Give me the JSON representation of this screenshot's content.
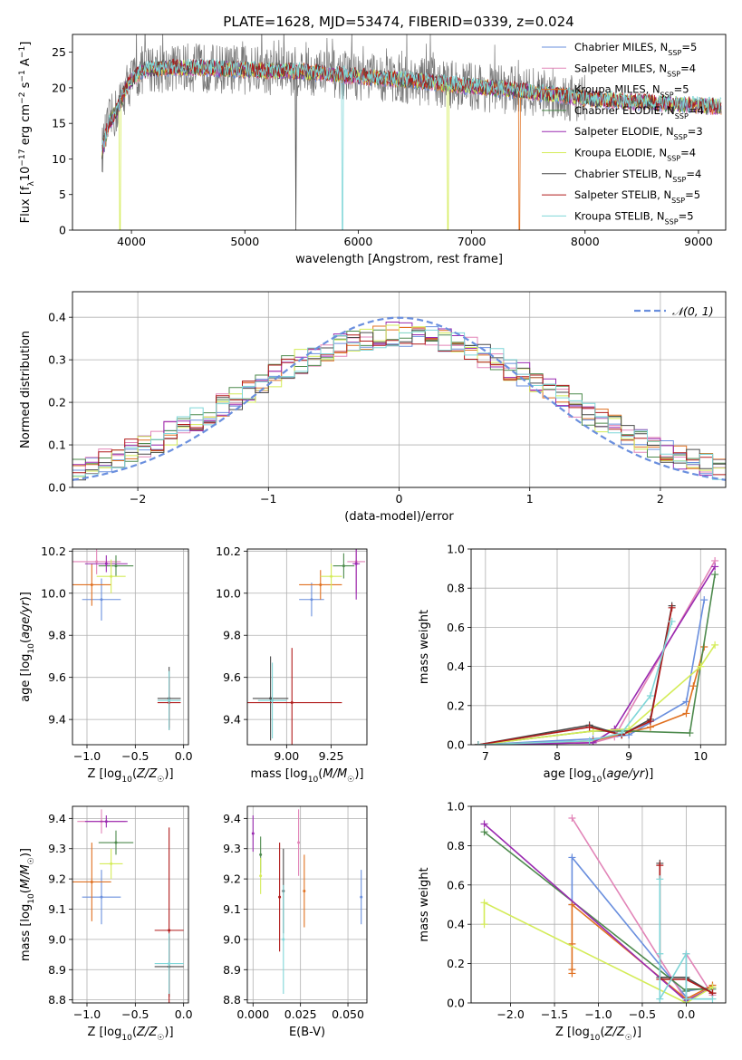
{
  "figure_title": "PLATE=1628, MJD=53474, FIBERID=0339, z=0.024",
  "colors": {
    "Chabrier MILES": "#6a8fde",
    "Salpeter MILES": "#e285b8",
    "Kroupa MILES": "#e07020",
    "Chabrier ELODIE": "#4d8a4d",
    "Salpeter ELODIE": "#9a2ab0",
    "Kroupa ELODIE": "#d4ec58",
    "Chabrier STELIB": "#4a4a4a",
    "Salpeter STELIB": "#b01a1a",
    "Kroupa STELIB": "#7fd6d8"
  },
  "chart_data": [
    {
      "id": "spectrum",
      "type": "line",
      "xlabel": "wavelength [Angstrom, rest frame]",
      "ylabel": "Flux [f_λ10^-17 erg cm^-2 s^-1 A^-1]",
      "xlim": [
        3480,
        9240
      ],
      "ylim": [
        0,
        27.5
      ],
      "xticks": [
        4000,
        5000,
        6000,
        7000,
        8000,
        9000
      ],
      "yticks": [
        0,
        5,
        10,
        15,
        20,
        25
      ],
      "grid": false,
      "legend_position": "top-right",
      "legend": [
        {
          "name": "Chabrier MILES",
          "nssp": "5"
        },
        {
          "name": "Salpeter MILES",
          "nssp": "4"
        },
        {
          "name": "Kroupa MILES",
          "nssp": "5"
        },
        {
          "name": "Chabrier ELODIE",
          "nssp": "4"
        },
        {
          "name": "Salpeter ELODIE",
          "nssp": "3"
        },
        {
          "name": "Kroupa ELODIE",
          "nssp": "4"
        },
        {
          "name": "Chabrier STELIB",
          "nssp": "4"
        },
        {
          "name": "Salpeter STELIB",
          "nssp": "5"
        },
        {
          "name": "Kroupa STELIB",
          "nssp": "5"
        }
      ],
      "continuum": [
        [
          3740,
          11
        ],
        [
          3800,
          15
        ],
        [
          3880,
          17
        ],
        [
          3950,
          20
        ],
        [
          4000,
          21
        ],
        [
          4100,
          22.5
        ],
        [
          4300,
          22.8
        ],
        [
          4600,
          22.8
        ],
        [
          5000,
          22.5
        ],
        [
          5500,
          22.3
        ],
        [
          6000,
          21.6
        ],
        [
          6500,
          21
        ],
        [
          7000,
          20.2
        ],
        [
          7500,
          19.5
        ],
        [
          8000,
          18.5
        ],
        [
          8500,
          18
        ],
        [
          9000,
          17.5
        ],
        [
          9200,
          17.3
        ]
      ],
      "dropouts": [
        {
          "x": 3900,
          "y": 0,
          "series": "Kroupa ELODIE"
        },
        {
          "x": 5860,
          "y": 0,
          "series": "Kroupa STELIB"
        },
        {
          "x": 6790,
          "y": 0,
          "series": "Kroupa ELODIE"
        },
        {
          "x": 7420,
          "y": 0,
          "series": "Kroupa MILES"
        },
        {
          "x": 5450,
          "y": 0,
          "series": "Chabrier STELIB"
        }
      ]
    },
    {
      "id": "residual-hist",
      "type": "line",
      "xlabel": "(data-model)/error",
      "ylabel": "Normed distribution",
      "xlim": [
        -2.5,
        2.5
      ],
      "ylim": [
        0,
        0.46
      ],
      "xticks": [
        -2,
        -1,
        0,
        1,
        2
      ],
      "yticks": [
        0,
        0.1,
        0.2,
        0.3,
        0.4
      ],
      "grid": true,
      "legend_position": "top-right",
      "legend": [
        {
          "name": "𝒩(0, 1)"
        }
      ],
      "bin_width": 0.1,
      "reference": "normal(0,1)"
    },
    {
      "id": "age-vs-Z",
      "type": "scatter",
      "xlabel": "Z [log10(Z/Z☉)]",
      "ylabel": "age [log10(age/yr)]",
      "xlim": [
        -1.15,
        0.05
      ],
      "ylim": [
        9.28,
        10.21
      ],
      "xticks": [
        -1.0,
        -0.5,
        0.0
      ],
      "yticks": [
        9.4,
        9.6,
        9.8,
        10.0,
        10.2
      ],
      "points": [
        {
          "series": "Chabrier MILES",
          "x": -0.85,
          "xerr": 0.2,
          "y": 9.97,
          "yerr": 0.1
        },
        {
          "series": "Salpeter MILES",
          "x": -0.9,
          "xerr": 0.25,
          "y": 10.15,
          "yerr": 0.06
        },
        {
          "series": "Kroupa MILES",
          "x": -0.95,
          "xerr": 0.2,
          "y": 10.04,
          "yerr": 0.1
        },
        {
          "series": "Chabrier ELODIE",
          "x": -0.7,
          "xerr": 0.18,
          "y": 10.13,
          "yerr": 0.05
        },
        {
          "series": "Salpeter ELODIE",
          "x": -0.8,
          "xerr": 0.22,
          "y": 10.14,
          "yerr": 0.04
        },
        {
          "series": "Kroupa ELODIE",
          "x": -0.75,
          "xerr": 0.15,
          "y": 10.08,
          "yerr": 0.08
        },
        {
          "series": "Chabrier STELIB",
          "x": -0.15,
          "xerr": 0.12,
          "y": 9.5,
          "yerr": 0.15
        },
        {
          "series": "Salpeter STELIB",
          "x": -0.15,
          "xerr": 0.12,
          "y": 9.48,
          "yerr": 0.12
        },
        {
          "series": "Kroupa STELIB",
          "x": -0.15,
          "xerr": 0.12,
          "y": 9.49,
          "yerr": 0.14
        }
      ]
    },
    {
      "id": "age-vs-mass",
      "type": "scatter",
      "xlabel": "mass [log10(M/M☉)]",
      "ylabel": "",
      "xlim": [
        8.78,
        9.45
      ],
      "ylim": [
        9.28,
        10.21
      ],
      "xticks": [
        9.0,
        9.25
      ],
      "yticks": [
        9.4,
        9.6,
        9.8,
        10.0,
        10.2
      ],
      "points": [
        {
          "series": "Chabrier MILES",
          "x": 9.14,
          "xerr": 0.07,
          "y": 9.97,
          "yerr": 0.08
        },
        {
          "series": "Salpeter MILES",
          "x": 9.39,
          "xerr": 0.05,
          "y": 10.15,
          "yerr": 0.15
        },
        {
          "series": "Kroupa MILES",
          "x": 9.19,
          "xerr": 0.12,
          "y": 10.04,
          "yerr": 0.07
        },
        {
          "series": "Chabrier ELODIE",
          "x": 9.32,
          "xerr": 0.06,
          "y": 10.13,
          "yerr": 0.06
        },
        {
          "series": "Salpeter ELODIE",
          "x": 9.39,
          "xerr": 0.02,
          "y": 10.14,
          "yerr": 0.17
        },
        {
          "series": "Kroupa ELODIE",
          "x": 9.25,
          "xerr": 0.06,
          "y": 10.08,
          "yerr": 0.06
        },
        {
          "series": "Chabrier STELIB",
          "x": 8.91,
          "xerr": 0.1,
          "y": 9.5,
          "yerr": 0.2
        },
        {
          "series": "Salpeter STELIB",
          "x": 9.03,
          "xerr": 0.28,
          "y": 9.48,
          "yerr": 0.26
        },
        {
          "series": "Kroupa STELIB",
          "x": 8.92,
          "xerr": 0.08,
          "y": 9.49,
          "yerr": 0.18
        }
      ]
    },
    {
      "id": "weight-vs-age",
      "type": "line",
      "xlabel": "age [log10(age/yr)]",
      "ylabel": "mass weight",
      "xlim": [
        6.8,
        10.35
      ],
      "ylim": [
        0,
        1.0
      ],
      "xticks": [
        7,
        8,
        9,
        10
      ],
      "yticks": [
        0,
        0.2,
        0.4,
        0.6,
        0.8,
        1.0
      ],
      "grid": true,
      "series": [
        {
          "name": "Chabrier MILES",
          "x": [
            6.9,
            8.5,
            9.0,
            9.8,
            10.05
          ],
          "y": [
            0,
            0.03,
            0.05,
            0.22,
            0.74
          ]
        },
        {
          "name": "Salpeter MILES",
          "x": [
            6.9,
            8.5,
            8.8,
            10.2
          ],
          "y": [
            0,
            0.01,
            0.04,
            0.94
          ]
        },
        {
          "name": "Kroupa MILES",
          "x": [
            6.9,
            8.5,
            9.3,
            9.8,
            9.9,
            10.05
          ],
          "y": [
            0,
            0.02,
            0.09,
            0.16,
            0.3,
            0.5
          ]
        },
        {
          "name": "Chabrier ELODIE",
          "x": [
            6.9,
            8.5,
            9.0,
            9.85,
            10.2
          ],
          "y": [
            0,
            0.07,
            0.07,
            0.06,
            0.87
          ]
        },
        {
          "name": "Salpeter ELODIE",
          "x": [
            6.9,
            8.5,
            8.8,
            10.2
          ],
          "y": [
            0,
            0.01,
            0.08,
            0.91
          ]
        },
        {
          "name": "Kroupa ELODIE",
          "x": [
            6.9,
            8.5,
            9.0,
            10.0,
            10.2
          ],
          "y": [
            0,
            0.07,
            0.08,
            0.4,
            0.51
          ]
        },
        {
          "name": "Chabrier STELIB",
          "x": [
            6.9,
            8.45,
            8.9,
            9.3,
            9.6
          ],
          "y": [
            0,
            0.1,
            0.05,
            0.13,
            0.71
          ]
        },
        {
          "name": "Salpeter STELIB",
          "x": [
            6.9,
            8.45,
            8.9,
            9.3,
            9.6
          ],
          "y": [
            0,
            0.09,
            0.05,
            0.12,
            0.7
          ]
        },
        {
          "name": "Kroupa STELIB",
          "x": [
            6.9,
            8.45,
            8.9,
            9.3,
            9.6
          ],
          "y": [
            0,
            0.02,
            0.06,
            0.25,
            0.63
          ]
        }
      ]
    },
    {
      "id": "mass-vs-Z",
      "type": "scatter",
      "xlabel": "Z [log10(Z/Z☉)]",
      "ylabel": "mass [log10(M/M☉)]",
      "xlim": [
        -1.15,
        0.05
      ],
      "ylim": [
        8.79,
        9.44
      ],
      "xticks": [
        -1.0,
        -0.5,
        0.0
      ],
      "yticks": [
        8.8,
        8.9,
        9.0,
        9.1,
        9.2,
        9.3,
        9.4
      ],
      "points": [
        {
          "series": "Chabrier MILES",
          "x": -0.85,
          "xerr": 0.2,
          "y": 9.14,
          "yerr": 0.09
        },
        {
          "series": "Salpeter MILES",
          "x": -0.85,
          "xerr": 0.25,
          "y": 9.39,
          "yerr": 0.04
        },
        {
          "series": "Kroupa MILES",
          "x": -0.95,
          "xerr": 0.2,
          "y": 9.19,
          "yerr": 0.13
        },
        {
          "series": "Chabrier ELODIE",
          "x": -0.7,
          "xerr": 0.18,
          "y": 9.32,
          "yerr": 0.04
        },
        {
          "series": "Salpeter ELODIE",
          "x": -0.8,
          "xerr": 0.22,
          "y": 9.39,
          "yerr": 0.02
        },
        {
          "series": "Kroupa ELODIE",
          "x": -0.75,
          "xerr": 0.12,
          "y": 9.25,
          "yerr": 0.05
        },
        {
          "series": "Chabrier STELIB",
          "x": -0.15,
          "xerr": 0.15,
          "y": 8.91,
          "yerr": 0.1
        },
        {
          "series": "Salpeter STELIB",
          "x": -0.15,
          "xerr": 0.15,
          "y": 9.03,
          "yerr": 0.34
        },
        {
          "series": "Kroupa STELIB",
          "x": -0.15,
          "xerr": 0.15,
          "y": 8.92,
          "yerr": 0.1
        }
      ]
    },
    {
      "id": "mass-vs-ebv",
      "type": "scatter",
      "xlabel": "E(B-V)",
      "ylabel": "",
      "xlim": [
        -0.003,
        0.06
      ],
      "ylim": [
        8.79,
        9.44
      ],
      "xticks": [
        0.0,
        0.025,
        0.05
      ],
      "yticks": [
        8.8,
        8.9,
        9.0,
        9.1,
        9.2,
        9.3,
        9.4
      ],
      "points": [
        {
          "series": "Chabrier MILES",
          "x": 0.057,
          "y": 9.14,
          "yerr": 0.09
        },
        {
          "series": "Salpeter MILES",
          "x": 0.024,
          "y": 9.32,
          "yerr": 0.11
        },
        {
          "series": "Kroupa MILES",
          "x": 0.027,
          "y": 9.16,
          "yerr": 0.12
        },
        {
          "series": "Chabrier ELODIE",
          "x": 0.004,
          "y": 9.28,
          "yerr": 0.06
        },
        {
          "series": "Salpeter ELODIE",
          "x": 0.0,
          "y": 9.35,
          "yerr": 0.06
        },
        {
          "series": "Kroupa ELODIE",
          "x": 0.004,
          "y": 9.21,
          "yerr": 0.06
        },
        {
          "series": "Chabrier STELIB",
          "x": 0.016,
          "y": 9.16,
          "yerr": 0.14
        },
        {
          "series": "Salpeter STELIB",
          "x": 0.014,
          "y": 9.14,
          "yerr": 0.18
        },
        {
          "series": "Kroupa STELIB",
          "x": 0.016,
          "y": 9.0,
          "yerr": 0.18
        }
      ]
    },
    {
      "id": "weight-vs-Z",
      "type": "line",
      "xlabel": "Z [log10(Z/Z☉)]",
      "ylabel": "mass weight",
      "xlim": [
        -2.45,
        0.45
      ],
      "ylim": [
        0,
        1.0
      ],
      "xticks": [
        -2.0,
        -1.5,
        -1.0,
        -0.5,
        0.0
      ],
      "yticks": [
        0,
        0.2,
        0.4,
        0.6,
        0.8,
        1.0
      ],
      "grid": true,
      "series": [
        {
          "name": "Chabrier MILES",
          "x": [
            -1.3,
            -1.3,
            0.0,
            0.0,
            0.3
          ],
          "y": [
            0.5,
            0.74,
            0.03,
            0.06,
            0.08
          ]
        },
        {
          "name": "Salpeter MILES",
          "x": [
            -1.3,
            0.0,
            0.0,
            0.3
          ],
          "y": [
            0.94,
            0.01,
            0.25,
            0.04
          ]
        },
        {
          "name": "Kroupa MILES",
          "x": [
            -1.3,
            -1.3,
            -1.3,
            -1.3,
            0.0,
            0.3
          ],
          "y": [
            0.15,
            0.17,
            0.3,
            0.5,
            0.02,
            0.09
          ]
        },
        {
          "name": "Chabrier ELODIE",
          "x": [
            -2.3,
            0.0,
            0.0,
            0.3
          ],
          "y": [
            0.87,
            0.06,
            0.07,
            0.07
          ]
        },
        {
          "name": "Salpeter ELODIE",
          "x": [
            -2.3,
            0.0,
            0.3
          ],
          "y": [
            0.91,
            0.01,
            0.08
          ]
        },
        {
          "name": "Kroupa ELODIE",
          "x": [
            -2.3,
            -2.3,
            0.0,
            0.3
          ],
          "y": [
            0.4,
            0.51,
            0.0,
            0.08
          ]
        },
        {
          "name": "Chabrier STELIB",
          "x": [
            -0.3,
            -0.3,
            0.0,
            0.3
          ],
          "y": [
            0.71,
            0.13,
            0.13,
            0.05
          ]
        },
        {
          "name": "Salpeter STELIB",
          "x": [
            -0.3,
            -0.3,
            0.0,
            0.3
          ],
          "y": [
            0.7,
            0.12,
            0.12,
            0.05
          ]
        },
        {
          "name": "Kroupa STELIB",
          "x": [
            -0.3,
            -0.3,
            -0.3,
            0.0,
            0.0,
            0.3
          ],
          "y": [
            0.63,
            0.25,
            0.02,
            0.25,
            0.02,
            0.02
          ]
        }
      ]
    }
  ]
}
